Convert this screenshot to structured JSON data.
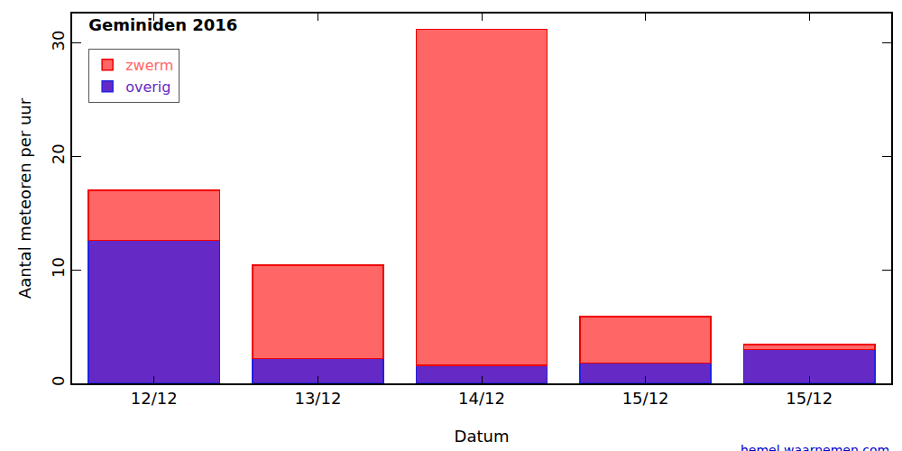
{
  "chart_data": {
    "type": "bar",
    "title": "Geminiden 2016",
    "x_label": "Datum",
    "y_label": "Aantal meteoren per uur",
    "categories": [
      "12/12",
      "13/12",
      "14/12",
      "15/12",
      "15/12"
    ],
    "series": [
      {
        "name": "overig",
        "color": "#6529c6",
        "values": [
          12.6,
          2.2,
          1.6,
          1.8,
          3.0
        ]
      },
      {
        "name": "zwerm",
        "color": "#ff6666",
        "values": [
          4.4,
          8.2,
          29.6,
          4.1,
          0.4
        ]
      }
    ],
    "stacked": true,
    "ylim": [
      0,
      32.6
    ],
    "yticks": [
      0,
      10,
      20,
      30
    ],
    "grid": false,
    "legend": "upper left",
    "source": "hemel.waarnemen.com"
  }
}
